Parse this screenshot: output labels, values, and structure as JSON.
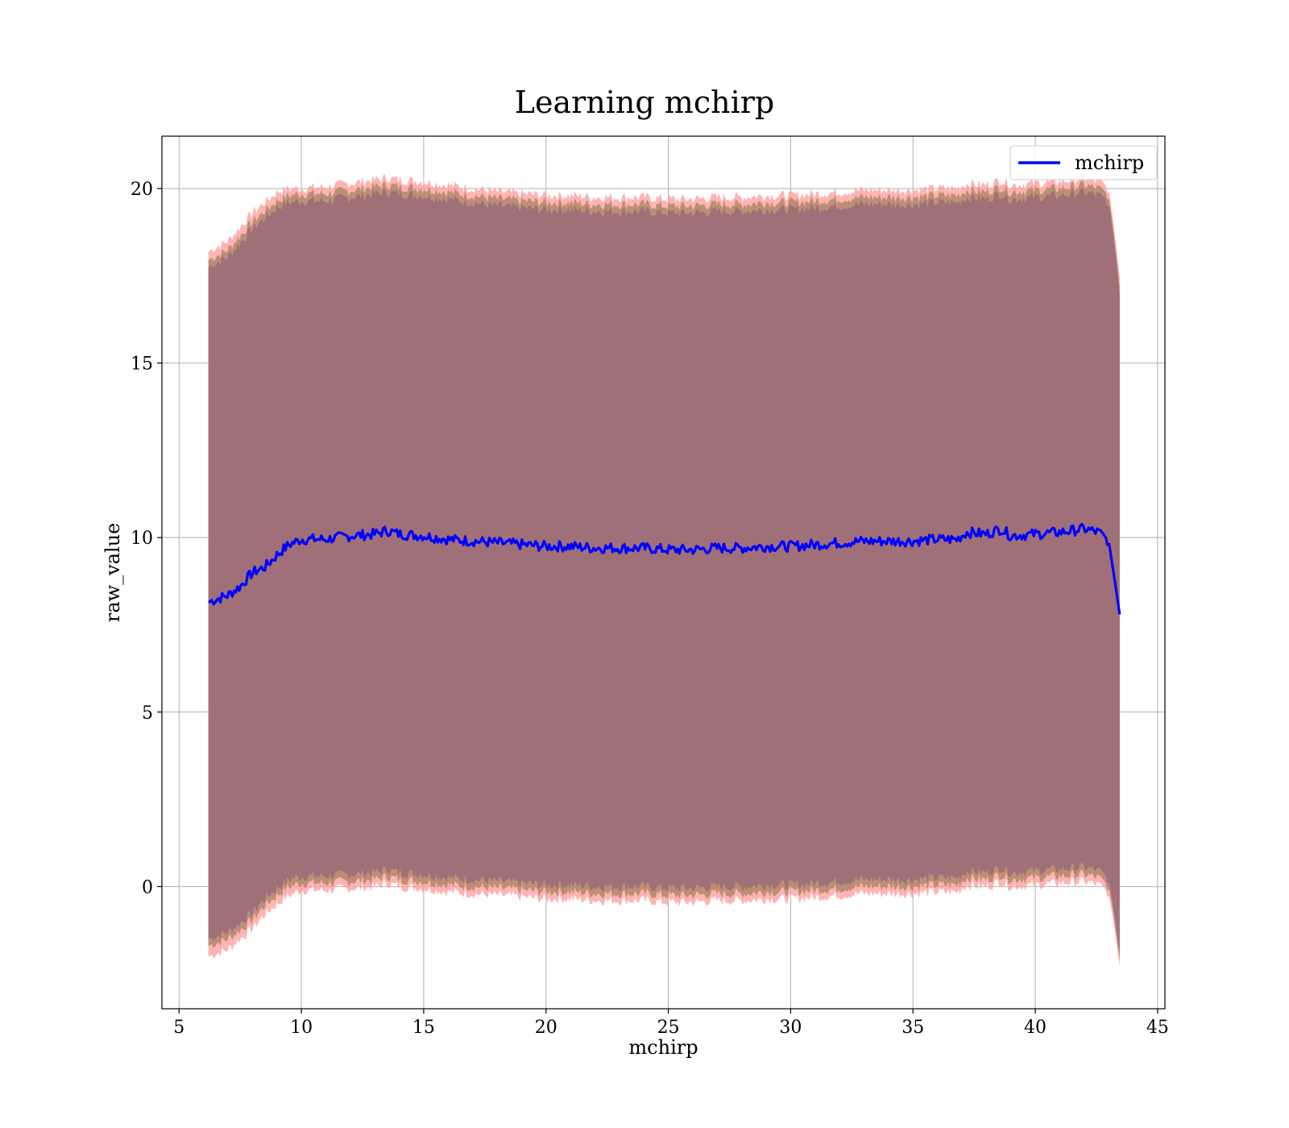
{
  "chart_data": {
    "type": "line",
    "title": "Learning mchirp",
    "xlabel": "mchirp",
    "ylabel": "raw_value",
    "xlim": [
      4.3,
      45.3
    ],
    "ylim": [
      -3.5,
      21.5
    ],
    "xticks": [
      5,
      10,
      15,
      20,
      25,
      30,
      35,
      40,
      45
    ],
    "yticks": [
      0,
      5,
      10,
      15,
      20
    ],
    "grid": true,
    "legend": {
      "placement": "top-right",
      "entries": [
        "mchirp"
      ]
    },
    "colors": {
      "line": "#0000ff",
      "band_outer": "#ff9999",
      "band_middle": "#b0886a",
      "band_inner": "#a07078",
      "grid": "#b0b0b0"
    },
    "series": [
      {
        "name": "mchirp",
        "x": [
          6.2,
          7.0,
          7.5,
          8.0,
          8.5,
          9.0,
          9.5,
          10.0,
          11.0,
          12.0,
          13.0,
          13.5,
          14.0,
          15.0,
          16.0,
          17.0,
          18.0,
          19.0,
          20.0,
          21.0,
          22.0,
          23.0,
          24.0,
          25.0,
          26.0,
          27.0,
          28.0,
          29.0,
          30.0,
          31.0,
          32.0,
          33.0,
          34.0,
          35.0,
          36.0,
          36.8,
          37.2,
          38.0,
          38.6,
          39.0,
          40.0,
          41.0,
          42.0,
          42.6,
          43.0,
          43.2,
          43.45
        ],
        "values": [
          8.15,
          8.35,
          8.6,
          9.0,
          9.15,
          9.5,
          9.8,
          9.95,
          9.95,
          10.05,
          10.1,
          10.2,
          10.1,
          10.05,
          9.95,
          9.9,
          9.85,
          9.8,
          9.75,
          9.75,
          9.7,
          9.7,
          9.7,
          9.65,
          9.65,
          9.7,
          9.7,
          9.75,
          9.75,
          9.8,
          9.85,
          9.9,
          9.9,
          9.9,
          9.95,
          9.95,
          10.15,
          10.1,
          10.25,
          10.05,
          10.1,
          10.15,
          10.25,
          10.15,
          9.9,
          9.0,
          7.8
        ]
      }
    ],
    "bands": [
      {
        "upper": [
          18.2,
          18.5,
          18.9,
          19.3,
          19.6,
          19.9,
          20.0,
          20.0,
          20.05,
          20.15,
          20.25,
          20.3,
          20.25,
          20.2,
          20.1,
          20.0,
          19.9,
          19.85,
          19.8,
          19.8,
          19.75,
          19.75,
          19.75,
          19.7,
          19.7,
          19.75,
          19.75,
          19.8,
          19.8,
          19.85,
          19.9,
          19.95,
          19.95,
          19.95,
          20.0,
          20.0,
          20.15,
          20.1,
          20.25,
          20.1,
          20.15,
          20.2,
          20.3,
          20.2,
          20.0,
          19.0,
          17.5
        ],
        "lower": [
          -2.0,
          -1.8,
          -1.5,
          -1.2,
          -0.8,
          -0.5,
          -0.25,
          -0.1,
          -0.1,
          -0.05,
          0.0,
          0.1,
          0.0,
          -0.05,
          -0.15,
          -0.2,
          -0.25,
          -0.3,
          -0.35,
          -0.35,
          -0.4,
          -0.4,
          -0.4,
          -0.45,
          -0.45,
          -0.4,
          -0.4,
          -0.35,
          -0.35,
          -0.3,
          -0.25,
          -0.2,
          -0.2,
          -0.2,
          -0.15,
          -0.15,
          0.05,
          0.0,
          0.15,
          0.0,
          0.05,
          0.1,
          0.15,
          0.05,
          -0.2,
          -1.0,
          -2.3
        ]
      },
      {
        "upper": [
          17.95,
          18.25,
          18.65,
          19.05,
          19.35,
          19.65,
          19.8,
          19.85,
          19.85,
          19.95,
          20.05,
          20.1,
          20.05,
          20.0,
          19.9,
          19.8,
          19.7,
          19.65,
          19.6,
          19.6,
          19.55,
          19.55,
          19.55,
          19.5,
          19.5,
          19.55,
          19.55,
          19.6,
          19.6,
          19.65,
          19.7,
          19.75,
          19.75,
          19.75,
          19.8,
          19.8,
          19.95,
          19.9,
          20.05,
          19.9,
          19.95,
          20.0,
          20.1,
          20.0,
          19.8,
          18.8,
          17.2
        ],
        "lower": [
          -1.7,
          -1.5,
          -1.25,
          -0.95,
          -0.55,
          -0.25,
          0.0,
          0.1,
          0.1,
          0.15,
          0.2,
          0.3,
          0.2,
          0.15,
          0.05,
          0.0,
          -0.05,
          -0.1,
          -0.15,
          -0.15,
          -0.2,
          -0.2,
          -0.2,
          -0.25,
          -0.25,
          -0.2,
          -0.2,
          -0.15,
          -0.15,
          -0.1,
          -0.05,
          0.0,
          0.0,
          0.0,
          0.05,
          0.05,
          0.25,
          0.2,
          0.35,
          0.2,
          0.25,
          0.3,
          0.35,
          0.25,
          0.0,
          -0.8,
          -2.1
        ]
      },
      {
        "upper": [
          17.75,
          18.05,
          18.45,
          18.85,
          19.15,
          19.45,
          19.6,
          19.65,
          19.65,
          19.75,
          19.85,
          19.9,
          19.85,
          19.8,
          19.7,
          19.6,
          19.5,
          19.45,
          19.4,
          19.4,
          19.35,
          19.35,
          19.35,
          19.3,
          19.3,
          19.35,
          19.35,
          19.4,
          19.4,
          19.45,
          19.5,
          19.55,
          19.55,
          19.55,
          19.6,
          19.6,
          19.75,
          19.7,
          19.85,
          19.7,
          19.75,
          19.8,
          19.9,
          19.8,
          19.6,
          18.6,
          17.0
        ],
        "lower": [
          -1.5,
          -1.3,
          -1.05,
          -0.75,
          -0.35,
          -0.05,
          0.2,
          0.3,
          0.3,
          0.35,
          0.4,
          0.5,
          0.4,
          0.35,
          0.25,
          0.2,
          0.15,
          0.1,
          0.05,
          0.05,
          0.0,
          0.0,
          0.0,
          -0.05,
          -0.05,
          0.0,
          0.0,
          0.05,
          0.05,
          0.1,
          0.15,
          0.2,
          0.2,
          0.2,
          0.25,
          0.25,
          0.45,
          0.4,
          0.55,
          0.4,
          0.45,
          0.5,
          0.55,
          0.45,
          0.2,
          -0.6,
          -1.9
        ]
      }
    ]
  }
}
